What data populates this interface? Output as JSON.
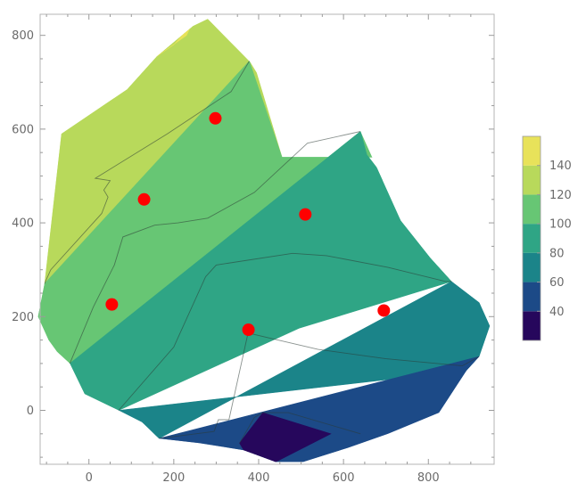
{
  "chart_data": {
    "type": "contour",
    "title": "",
    "xlabel": "",
    "ylabel": "",
    "xlim": [
      -115,
      955
    ],
    "ylim": [
      -115,
      845
    ],
    "x_ticks": [
      0,
      200,
      400,
      600,
      800
    ],
    "y_ticks": [
      0,
      200,
      400,
      600,
      800
    ],
    "x_tick_labels": [
      "0",
      "200",
      "400",
      "600",
      "800"
    ],
    "y_tick_labels": [
      "0",
      "200",
      "400",
      "600",
      "800"
    ],
    "grid": false,
    "legend": {
      "placement": "right",
      "levels": [
        20,
        40,
        60,
        80,
        100,
        120,
        140,
        160
      ],
      "labels": [
        "40",
        "60",
        "80",
        "100",
        "120",
        "140"
      ],
      "colors": [
        "#26075c",
        "#1c4a87",
        "#1b8489",
        "#2fa585",
        "#67c674",
        "#b8d95b",
        "#e8e25a"
      ]
    },
    "band_colors": {
      "20-40": "#26075c",
      "40-60": "#1c4a87",
      "60-80": "#1b8489",
      "80-100": "#2fa585",
      "100-120": "#67c674",
      "120-140": "#b8d95b",
      "140-160": "#e8e25a"
    },
    "regions": [
      {
        "band": "120-140",
        "polygon": [
          [
            -65,
            590
          ],
          [
            -105,
            270
          ],
          [
            455,
            540
          ],
          [
            395,
            720
          ],
          [
            378,
            745
          ],
          [
            280,
            835
          ],
          [
            245,
            820
          ],
          [
            160,
            755
          ],
          [
            90,
            685
          ]
        ]
      },
      {
        "band": "140-160",
        "polygon": [
          [
            160,
            755
          ],
          [
            230,
            800
          ],
          [
            240,
            820
          ],
          [
            200,
            780
          ]
        ]
      },
      {
        "band": "100-120",
        "polygon": [
          [
            378,
            745
          ],
          [
            -105,
            270
          ],
          [
            -120,
            200
          ],
          [
            -95,
            150
          ],
          [
            -75,
            125
          ],
          [
            -45,
            100
          ],
          [
            640,
            595
          ],
          [
            695,
            540
          ],
          [
            455,
            540
          ]
        ]
      },
      {
        "band": "100-120",
        "polygon": [
          [
            640,
            595
          ],
          [
            655,
            545
          ],
          [
            710,
            480
          ],
          [
            655,
            515
          ]
        ]
      },
      {
        "band": "80-100",
        "polygon": [
          [
            640,
            595
          ],
          [
            -45,
            100
          ],
          [
            -10,
            35
          ],
          [
            70,
            0
          ],
          [
            495,
            175
          ],
          [
            855,
            275
          ],
          [
            805,
            325
          ],
          [
            735,
            405
          ],
          [
            710,
            480
          ],
          [
            655,
            545
          ]
        ]
      },
      {
        "band": "60-80",
        "polygon": [
          [
            70,
            0
          ],
          [
            125,
            -25
          ],
          [
            165,
            -60
          ],
          [
            855,
            275
          ],
          [
            920,
            230
          ],
          [
            945,
            180
          ],
          [
            920,
            115
          ],
          [
            890,
            85
          ]
        ]
      },
      {
        "band": "40-60",
        "polygon": [
          [
            165,
            -60
          ],
          [
            920,
            115
          ],
          [
            890,
            85
          ],
          [
            825,
            -5
          ],
          [
            705,
            -50
          ],
          [
            610,
            -80
          ],
          [
            505,
            -110
          ],
          [
            440,
            -110
          ],
          [
            365,
            -85
          ],
          [
            260,
            -70
          ]
        ]
      },
      {
        "band": "20-40",
        "polygon": [
          [
            355,
            -70
          ],
          [
            410,
            -5
          ],
          [
            570,
            -50
          ],
          [
            440,
            -110
          ],
          [
            365,
            -85
          ]
        ]
      }
    ],
    "domain_boundary": [
      [
        -65,
        590
      ],
      [
        90,
        685
      ],
      [
        160,
        755
      ],
      [
        245,
        820
      ],
      [
        280,
        835
      ],
      [
        378,
        745
      ],
      [
        640,
        595
      ],
      [
        735,
        405
      ],
      [
        805,
        325
      ],
      [
        855,
        275
      ],
      [
        920,
        230
      ],
      [
        945,
        180
      ],
      [
        920,
        115
      ],
      [
        890,
        85
      ],
      [
        825,
        -5
      ],
      [
        705,
        -50
      ],
      [
        610,
        -80
      ],
      [
        505,
        -110
      ],
      [
        440,
        -110
      ],
      [
        365,
        -85
      ],
      [
        260,
        -70
      ],
      [
        165,
        -60
      ],
      [
        125,
        -25
      ],
      [
        70,
        0
      ],
      [
        -10,
        35
      ],
      [
        -45,
        100
      ],
      [
        -75,
        125
      ],
      [
        -95,
        150
      ],
      [
        -120,
        200
      ],
      [
        -105,
        270
      ]
    ],
    "contour_lines": [
      [
        [
          -105,
          270
        ],
        [
          -90,
          300
        ],
        [
          30,
          420
        ],
        [
          45,
          455
        ],
        [
          35,
          470
        ],
        [
          50,
          490
        ],
        [
          15,
          495
        ],
        [
          185,
          590
        ],
        [
          335,
          680
        ],
        [
          378,
          745
        ]
      ],
      [
        [
          -45,
          100
        ],
        [
          10,
          220
        ],
        [
          60,
          310
        ],
        [
          80,
          370
        ],
        [
          155,
          395
        ],
        [
          210,
          400
        ],
        [
          280,
          410
        ],
        [
          390,
          465
        ],
        [
          515,
          570
        ],
        [
          640,
          595
        ]
      ],
      [
        [
          70,
          0
        ],
        [
          200,
          135
        ],
        [
          275,
          285
        ],
        [
          300,
          310
        ],
        [
          480,
          335
        ],
        [
          560,
          330
        ],
        [
          705,
          305
        ],
        [
          840,
          275
        ],
        [
          855,
          275
        ]
      ],
      [
        [
          165,
          -60
        ],
        [
          295,
          -45
        ],
        [
          305,
          -20
        ],
        [
          330,
          -20
        ],
        [
          375,
          165
        ],
        [
          540,
          130
        ],
        [
          700,
          110
        ],
        [
          880,
          95
        ],
        [
          920,
          115
        ]
      ],
      [
        [
          355,
          -70
        ],
        [
          390,
          -15
        ],
        [
          410,
          -5
        ],
        [
          470,
          -5
        ],
        [
          640,
          -50
        ]
      ]
    ],
    "points": [
      {
        "x": 298,
        "y": 623
      },
      {
        "x": 130,
        "y": 450
      },
      {
        "x": 510,
        "y": 418
      },
      {
        "x": 54,
        "y": 226
      },
      {
        "x": 376,
        "y": 172
      },
      {
        "x": 695,
        "y": 213
      }
    ],
    "point_color": "#ff0000"
  }
}
